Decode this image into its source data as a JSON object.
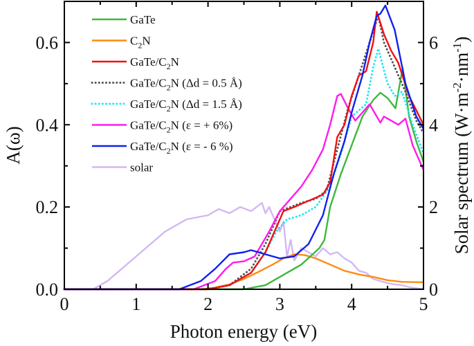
{
  "chart_data": {
    "type": "line",
    "xlabel": "Photon energy (eV)",
    "ylabel": "A(ω)",
    "y2label": {
      "main": "Solar spectrum (W·m",
      "sup1": "-2",
      "mid": "·nm",
      "sup2": "-1",
      "end": ")"
    },
    "xlim": [
      0,
      5
    ],
    "ylim": [
      0,
      0.7
    ],
    "y2lim": [
      0,
      7
    ],
    "xticks": [
      "0",
      "1",
      "2",
      "3",
      "4",
      "5"
    ],
    "yticks": [
      "0.0",
      "0.2",
      "0.4",
      "0.6"
    ],
    "y2ticks": [
      "0",
      "2",
      "4",
      "6"
    ],
    "legend_placement": "top-left",
    "series": [
      {
        "name": "GaTe",
        "color": "#3cb83c",
        "dash": false,
        "axis": "left",
        "x": [
          0,
          2.5,
          2.8,
          3.0,
          3.3,
          3.55,
          3.62,
          3.7,
          3.85,
          4.0,
          4.15,
          4.3,
          4.4,
          4.5,
          4.61,
          4.71,
          4.8,
          4.9,
          5.0
        ],
        "y": [
          0,
          0,
          0.01,
          0.03,
          0.06,
          0.1,
          0.12,
          0.2,
          0.28,
          0.35,
          0.42,
          0.46,
          0.478,
          0.465,
          0.44,
          0.538,
          0.42,
          0.36,
          0.31
        ]
      },
      {
        "name": "C₂N",
        "nameparts": [
          "C",
          "2",
          "N"
        ],
        "color": "#ff8a10",
        "dash": false,
        "axis": "left",
        "x": [
          0,
          1.9,
          2.1,
          2.3,
          2.5,
          2.7,
          2.9,
          3.05,
          3.2,
          3.35,
          3.5,
          3.7,
          3.9,
          4.1,
          4.3,
          4.5,
          4.7,
          5.0
        ],
        "y": [
          0,
          0,
          0.004,
          0.012,
          0.025,
          0.042,
          0.06,
          0.075,
          0.085,
          0.083,
          0.075,
          0.06,
          0.045,
          0.036,
          0.03,
          0.022,
          0.018,
          0.017
        ]
      },
      {
        "name": "GaTe/C₂N",
        "nameparts": [
          "GaTe/C",
          "2",
          "N"
        ],
        "color": "#ee1111",
        "dash": false,
        "axis": "left",
        "x": [
          0,
          2.0,
          2.3,
          2.6,
          2.8,
          2.95,
          3.05,
          3.2,
          3.4,
          3.6,
          3.7,
          3.8,
          3.9,
          4.0,
          4.1,
          4.2,
          4.3,
          4.35,
          4.45,
          4.55,
          4.65,
          4.8,
          5.0
        ],
        "y": [
          0,
          0,
          0.01,
          0.04,
          0.09,
          0.15,
          0.19,
          0.2,
          0.215,
          0.23,
          0.26,
          0.37,
          0.4,
          0.47,
          0.52,
          0.53,
          0.6,
          0.675,
          0.62,
          0.58,
          0.55,
          0.47,
          0.4
        ]
      },
      {
        "name": "GaTe/C₂N (Δd = 0.5 Å)",
        "nameparts": [
          "GaTe/C",
          "2",
          "N (Δd = 0.5 Å)"
        ],
        "color": "#555555",
        "dash": true,
        "axis": "left",
        "x": [
          0,
          2.0,
          2.3,
          2.6,
          2.8,
          3.0,
          3.3,
          3.5,
          3.65,
          3.8,
          3.95,
          4.1,
          4.25,
          4.37,
          4.45,
          4.6,
          4.75,
          4.9,
          5.0
        ],
        "y": [
          0,
          0,
          0.01,
          0.05,
          0.11,
          0.19,
          0.21,
          0.22,
          0.24,
          0.34,
          0.44,
          0.52,
          0.6,
          0.665,
          0.6,
          0.54,
          0.48,
          0.41,
          0.38
        ]
      },
      {
        "name": "GaTe/C₂N (Δd = 1.5 Å)",
        "nameparts": [
          "GaTe/C",
          "2",
          "N (Δd = 1.5 Å)"
        ],
        "color": "#22e6f0",
        "dash": true,
        "axis": "left",
        "x": [
          0,
          2.0,
          2.3,
          2.6,
          2.8,
          2.95,
          3.1,
          3.3,
          3.5,
          3.7,
          3.85,
          4.0,
          4.2,
          4.3,
          4.37,
          4.5,
          4.6,
          4.7,
          4.85,
          5.0
        ],
        "y": [
          0,
          0,
          0.01,
          0.04,
          0.09,
          0.14,
          0.17,
          0.18,
          0.2,
          0.25,
          0.33,
          0.42,
          0.45,
          0.54,
          0.585,
          0.5,
          0.47,
          0.48,
          0.4,
          0.33
        ]
      },
      {
        "name": "GaTe/C₂N (ε = + 6%)",
        "nameparts": [
          "GaTe/C",
          "2",
          "N (ε = + 6%)"
        ],
        "color": "#ff1aee",
        "dash": false,
        "axis": "left",
        "x": [
          0,
          1.8,
          2.1,
          2.25,
          2.35,
          2.5,
          2.65,
          2.85,
          3.0,
          3.2,
          3.3,
          3.45,
          3.6,
          3.7,
          3.8,
          3.85,
          3.95,
          4.05,
          4.15,
          4.25,
          4.35,
          4.4,
          4.45,
          4.55,
          4.65,
          4.75,
          4.85,
          5.0
        ],
        "y": [
          0,
          0,
          0.02,
          0.05,
          0.065,
          0.068,
          0.08,
          0.14,
          0.19,
          0.23,
          0.25,
          0.29,
          0.34,
          0.4,
          0.47,
          0.475,
          0.44,
          0.41,
          0.43,
          0.45,
          0.42,
          0.405,
          0.42,
          0.41,
          0.4,
          0.415,
          0.35,
          0.29
        ]
      },
      {
        "name": "GaTe/C₂N (ε = - 6 %)",
        "nameparts": [
          "GaTe/C",
          "2",
          "N (ε = - 6 %)"
        ],
        "color": "#1020ee",
        "dash": false,
        "axis": "left",
        "x": [
          0,
          1.6,
          1.9,
          2.1,
          2.3,
          2.5,
          2.6,
          2.8,
          3.0,
          3.2,
          3.4,
          3.6,
          3.75,
          3.9,
          4.0,
          4.15,
          4.25,
          4.35,
          4.4,
          4.47,
          4.6,
          4.75,
          4.9,
          5.0
        ],
        "y": [
          0,
          0,
          0.02,
          0.05,
          0.085,
          0.09,
          0.095,
          0.085,
          0.075,
          0.08,
          0.11,
          0.18,
          0.28,
          0.36,
          0.43,
          0.52,
          0.6,
          0.665,
          0.67,
          0.69,
          0.63,
          0.5,
          0.42,
          0.39
        ]
      },
      {
        "name": "solar",
        "color": "#d2b8f2",
        "dash": false,
        "axis": "right",
        "x": [
          0,
          0.4,
          0.6,
          0.8,
          1.0,
          1.2,
          1.4,
          1.55,
          1.7,
          1.85,
          2.0,
          2.15,
          2.3,
          2.45,
          2.6,
          2.75,
          2.8,
          2.85,
          2.95,
          3.0,
          3.05,
          3.1,
          3.15,
          3.2,
          3.3,
          3.4,
          3.5,
          3.6,
          3.7,
          3.8,
          3.9,
          4.0,
          4.1,
          4.2,
          4.3,
          4.4,
          4.5,
          4.6,
          4.7,
          4.8,
          5.0
        ],
        "y": [
          0,
          0,
          0.2,
          0.5,
          0.8,
          1.1,
          1.4,
          1.55,
          1.7,
          1.75,
          1.8,
          1.95,
          1.85,
          2.0,
          1.9,
          2.1,
          1.85,
          2.0,
          1.6,
          1.4,
          1.65,
          0.8,
          1.2,
          0.7,
          1.0,
          0.9,
          0.8,
          1.0,
          0.85,
          0.9,
          0.75,
          0.65,
          0.45,
          0.4,
          0.25,
          0.2,
          0.15,
          0.12,
          0.1,
          0.05,
          0
        ]
      }
    ]
  }
}
